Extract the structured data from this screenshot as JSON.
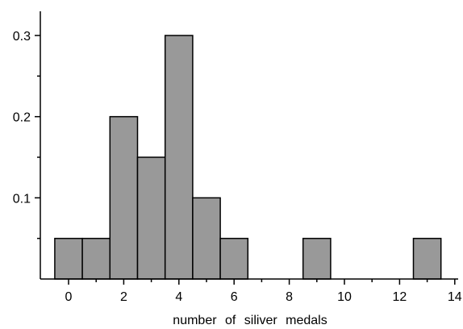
{
  "chart_data": {
    "type": "bar",
    "title": "",
    "xlabel": "number of siliver medals",
    "ylabel": "",
    "x": [
      0,
      1,
      2,
      3,
      4,
      5,
      6,
      7,
      8,
      9,
      10,
      11,
      12,
      13
    ],
    "values": [
      0.05,
      0.05,
      0.2,
      0.15,
      0.3,
      0.1,
      0.05,
      0,
      0,
      0.05,
      0,
      0,
      0,
      0.05
    ],
    "bar_width": 1,
    "xlim": [
      -1,
      14.5
    ],
    "ylim": [
      0,
      0.33
    ],
    "x_ticks": [
      0,
      2,
      4,
      6,
      8,
      10,
      12,
      14
    ],
    "x_tick_labels": [
      "0",
      "2",
      "4",
      "6",
      "8",
      "10",
      "12",
      "14"
    ],
    "y_ticks": [
      0.1,
      0.2,
      0.3
    ],
    "y_tick_labels": [
      "0.1",
      "0.2",
      "0.3"
    ],
    "y_minor_step": 0.05,
    "grid": false,
    "legend": "none",
    "bar_color": "#999999",
    "edge_color": "#000000"
  }
}
